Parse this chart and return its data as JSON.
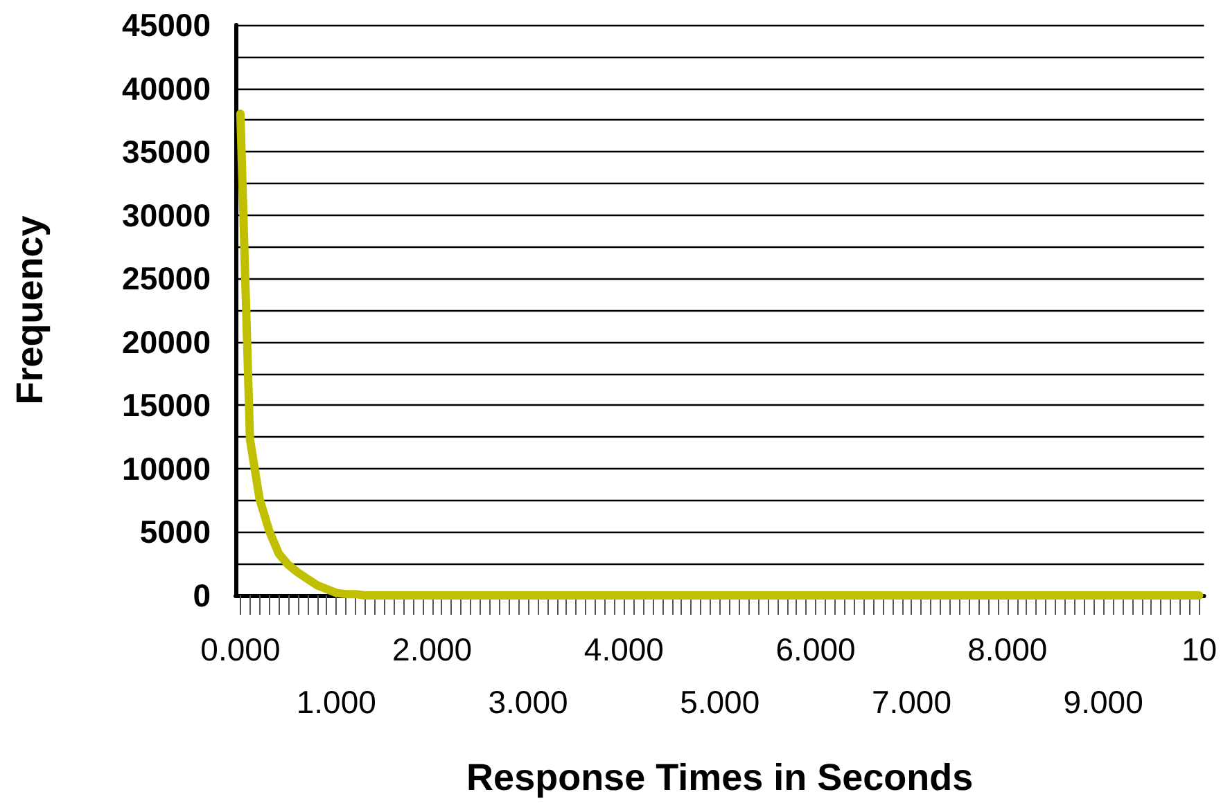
{
  "chart_data": {
    "type": "line",
    "xlabel": "Response Times in Seconds",
    "ylabel": "Frequency",
    "categories": [
      "0.000",
      null,
      null,
      null,
      null,
      null,
      null,
      null,
      null,
      null,
      "1.000",
      null,
      null,
      null,
      null,
      null,
      null,
      null,
      null,
      null,
      "2.000",
      null,
      null,
      null,
      null,
      null,
      null,
      null,
      null,
      null,
      "3.000",
      null,
      null,
      null,
      null,
      null,
      null,
      null,
      null,
      null,
      "4.000",
      null,
      null,
      null,
      null,
      null,
      null,
      null,
      null,
      null,
      "5.000",
      null,
      null,
      null,
      null,
      null,
      null,
      null,
      null,
      null,
      "6.000",
      null,
      null,
      null,
      null,
      null,
      null,
      null,
      null,
      null,
      "7.000",
      null,
      null,
      null,
      null,
      null,
      null,
      null,
      null,
      null,
      "8.000",
      null,
      null,
      null,
      null,
      null,
      null,
      null,
      null,
      null,
      "9.000",
      null,
      null,
      null,
      null,
      null,
      null,
      null,
      null,
      null,
      "10"
    ],
    "series": [
      {
        "color": "#c0c000",
        "values": [
          38000,
          12300,
          7600,
          5100,
          3300,
          2400,
          1800,
          1300,
          800,
          500,
          200,
          100,
          100,
          0,
          0,
          0,
          0,
          0,
          0,
          0,
          0,
          0,
          0,
          0,
          0,
          0,
          0,
          0,
          0,
          0,
          0,
          0,
          0,
          0,
          0,
          0,
          0,
          0,
          0,
          0,
          0,
          0,
          0,
          0,
          0,
          0,
          0,
          0,
          0,
          0,
          0,
          0,
          0,
          0,
          0,
          0,
          0,
          0,
          0,
          0,
          0,
          0,
          0,
          0,
          0,
          0,
          0,
          0,
          0,
          0,
          0,
          0,
          0,
          0,
          0,
          0,
          0,
          0,
          0,
          0,
          0,
          0,
          0,
          0,
          0,
          0,
          0,
          0,
          0,
          0,
          0,
          0,
          0,
          0,
          0,
          0,
          0,
          0,
          0,
          0,
          0
        ]
      }
    ],
    "ylim": [
      0,
      45000
    ],
    "yticks": [
      0,
      {
        "value": 2500,
        "label": null
      },
      5000,
      {
        "value": 7500,
        "label": null
      },
      10000,
      {
        "value": 12500,
        "label": null
      },
      15000,
      {
        "value": 17500,
        "label": null
      },
      20000,
      {
        "value": 22500,
        "label": null
      },
      25000,
      {
        "value": 27500,
        "label": null
      },
      30000,
      {
        "value": 32500,
        "label": null
      },
      35000,
      {
        "value": 37500,
        "label": null
      },
      40000,
      {
        "value": 42500,
        "label": null
      },
      45000
    ],
    "grid": "y",
    "marker": "none",
    "line_style": "solid"
  }
}
